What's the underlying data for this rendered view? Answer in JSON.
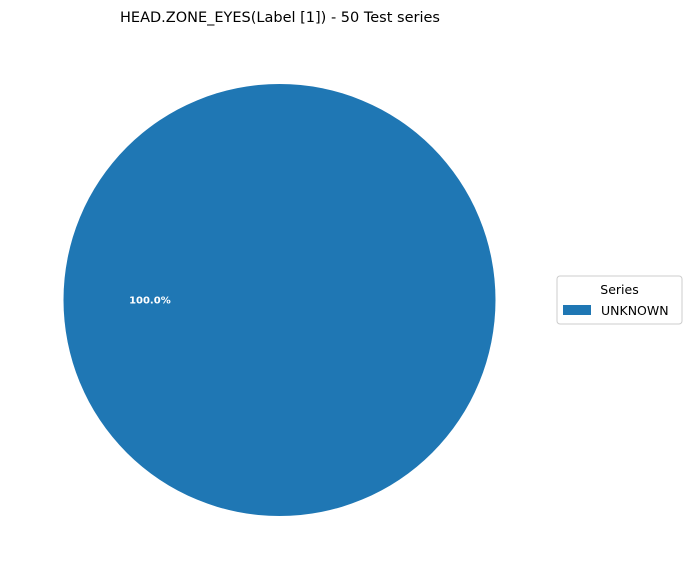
{
  "chart_data": {
    "type": "pie",
    "title": "HEAD.ZONE_EYES(Label [1]) - 50 Test series",
    "slices": [
      {
        "label": "UNKNOWN",
        "value": 100.0,
        "display": "100.0%",
        "color": "#1f77b4"
      }
    ],
    "legend": {
      "title": "Series",
      "placement": "center-right",
      "entries": [
        "UNKNOWN"
      ]
    }
  }
}
